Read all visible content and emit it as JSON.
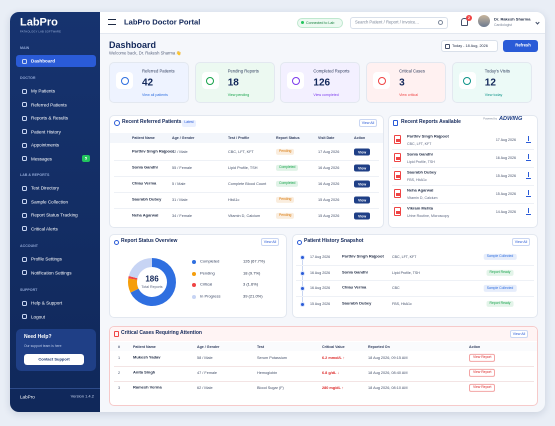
{
  "sidebar": {
    "logo": "LabPro",
    "tagline": "PATHOLOGY LAB SOFTWARE",
    "sections": [
      {
        "label": "MAIN",
        "items": [
          {
            "label": "Dashboard",
            "active": true
          }
        ]
      },
      {
        "label": "DOCTOR",
        "items": [
          {
            "label": "My Patients"
          },
          {
            "label": "Referred Patients"
          },
          {
            "label": "Reports & Results"
          },
          {
            "label": "Patient History"
          },
          {
            "label": "Appointments"
          },
          {
            "label": "Messages",
            "badge": 5
          }
        ]
      },
      {
        "label": "LAB & REPORTS",
        "items": [
          {
            "label": "Test Directory"
          },
          {
            "label": "Sample Collection"
          },
          {
            "label": "Report Status Tracking"
          },
          {
            "label": "Critical Alerts"
          }
        ]
      },
      {
        "label": "ACCOUNT",
        "items": [
          {
            "label": "Profile Settings"
          },
          {
            "label": "Notification Settings"
          }
        ]
      },
      {
        "label": "SUPPORT",
        "items": [
          {
            "label": "Help & Support"
          },
          {
            "label": "Logout"
          }
        ]
      }
    ],
    "help": {
      "title": "Need Help?",
      "text": "Our support team is here",
      "button": "Contact Support"
    },
    "footer": {
      "brand": "LabPro",
      "version": "Version 1.4.2"
    }
  },
  "topbar": {
    "title": "LabPro Doctor Portal",
    "status": "Connected to Lab",
    "search_placeholder": "Search Patient / Report / Invoice...",
    "notifications": 2,
    "user_name": "Dr. Rakesh Sharma",
    "user_role": "Cardiologist"
  },
  "header": {
    "title": "Dashboard",
    "welcome": "Welcome back, Dr. Rakesh Sharma 👋",
    "date": "Today - 18 Aug, 2026",
    "refresh": "Refresh"
  },
  "stats": [
    {
      "label": "Referred Patients",
      "value": 42,
      "link": "View all patients",
      "color": "#2f6fe0",
      "bg": "#eef3ff"
    },
    {
      "label": "Pending Reports",
      "value": 18,
      "link": "View pending",
      "color": "#16a34a",
      "bg": "#ecf9f1"
    },
    {
      "label": "Completed Reports",
      "value": 126,
      "link": "View completed",
      "color": "#7c3aed",
      "bg": "#f3f0ff"
    },
    {
      "label": "Critical Cases",
      "value": 3,
      "link": "View critical",
      "color": "#ef4444",
      "bg": "#fff1f1"
    },
    {
      "label": "Today's Visits",
      "value": 12,
      "link": "View today",
      "color": "#0d9488",
      "bg": "#ecfaf7"
    }
  ],
  "referred": {
    "title": "Recent Referred Patients",
    "badge": "Latest",
    "view_all": "View All",
    "columns": [
      "Patient Name",
      "Age / Gender",
      "Test / Profile",
      "Report Status",
      "Visit Date",
      "Action"
    ],
    "rows": [
      {
        "name": "Parthiv Singh Rajpoot",
        "age": "42 / Male",
        "test": "CBC, LFT, KFT",
        "status": "Pending",
        "status_color": "#d97706",
        "date": "17 Aug 2026",
        "action": "View"
      },
      {
        "name": "Sonia Gandhi",
        "age": "55 / Female",
        "test": "Lipid Profile, TSH",
        "status": "Completed",
        "status_color": "#16a34a",
        "date": "16 Aug 2026",
        "action": "View"
      },
      {
        "name": "Chiau Verma",
        "age": "5 / Male",
        "test": "Complete Blood Count",
        "status": "Completed",
        "status_color": "#16a34a",
        "date": "16 Aug 2026",
        "action": "View"
      },
      {
        "name": "Saurabh Dubey",
        "age": "31 / Male",
        "test": "HbA1c",
        "status": "Pending",
        "status_color": "#d97706",
        "date": "15 Aug 2026",
        "action": "View"
      },
      {
        "name": "Neha Agarwal",
        "age": "34 / Female",
        "test": "Vitamin D, Calcium",
        "status": "Pending",
        "status_color": "#d97706",
        "date": "15 Aug 2026",
        "action": "View"
      }
    ]
  },
  "reports": {
    "title": "Recent Reports Available",
    "powered_by": "Powered by",
    "brand": "ADWING",
    "rows": [
      {
        "name": "Parthiv Singh Rajpoot",
        "test": "CBC, LFT, KFT",
        "date": "17 Aug 2026"
      },
      {
        "name": "Sonia Gandhi",
        "test": "Lipid Profile, TSH",
        "date": "16 Aug 2026"
      },
      {
        "name": "Saurabh Dubey",
        "test": "FBS, HbA1c",
        "date": "15 Aug 2026"
      },
      {
        "name": "Neha Agarwal",
        "test": "Vitamin D, Calcium",
        "date": "15 Aug 2026"
      },
      {
        "name": "Vikram Mehta",
        "test": "Urine Routine, Microscopy",
        "date": "14 Aug 2026"
      }
    ]
  },
  "status_overview": {
    "title": "Report Status Overview",
    "view_all": "View All",
    "total": 186,
    "total_label": "Total Reports",
    "segments": [
      {
        "name": "Completed",
        "value": 126,
        "label": "126 (67.7%)",
        "color": "#2f6fe0"
      },
      {
        "name": "Pending",
        "value": 18,
        "label": "18 (9.7%)",
        "color": "#f59e0b"
      },
      {
        "name": "Critical",
        "value": 3,
        "label": "3 (1.6%)",
        "color": "#ef4444"
      },
      {
        "name": "In Progress",
        "value": 39,
        "label": "39 (21.0%)",
        "color": "#c7d4f4"
      }
    ]
  },
  "history": {
    "title": "Patient History Snapshot",
    "view_all": "View All",
    "rows": [
      {
        "date": "17 Aug 2026",
        "name": "Parthiv Singh Rajpoot",
        "test": "CBC, LFT, KFT",
        "status": "Sample Collected",
        "status_color": "#2f6fe0"
      },
      {
        "date": "16 Aug 2026",
        "name": "Sonia Gandhi",
        "test": "Lipid Profile, TSH",
        "status": "Report Ready",
        "status_color": "#16a34a"
      },
      {
        "date": "16 Aug 2026",
        "name": "Chiau Verma",
        "test": "CBC",
        "status": "Sample Collected",
        "status_color": "#2f6fe0"
      },
      {
        "date": "15 Aug 2026",
        "name": "Saurabh Dubey",
        "test": "FBS, HbA1c",
        "status": "Report Ready",
        "status_color": "#16a34a"
      }
    ]
  },
  "critical": {
    "title": "Critical Cases Requiring Attention",
    "view_all": "View All",
    "columns": [
      "#",
      "Patient Name",
      "Age / Gender",
      "Test",
      "Critical Value",
      "Reported On",
      "Action"
    ],
    "rows": [
      {
        "index": 1,
        "name": "Mukesh Yadav",
        "age": "58 / Male",
        "test": "Serum Potassium",
        "value": "6.2 mmol/L ↑",
        "reported": "18 Aug 2026, 09:15 AM",
        "action": "View Report"
      },
      {
        "index": 2,
        "name": "Anita Singh",
        "age": "47 / Female",
        "test": "Hemoglobin",
        "value": "6.8 g/dL ↓",
        "reported": "18 Aug 2026, 08:40 AM",
        "action": "View Report"
      },
      {
        "index": 3,
        "name": "Ramesh Verma",
        "age": "62 / Male",
        "test": "Blood Sugar (F)",
        "value": "280 mg/dL ↑",
        "reported": "18 Aug 2026, 08:10 AM",
        "action": "View Report"
      }
    ]
  }
}
